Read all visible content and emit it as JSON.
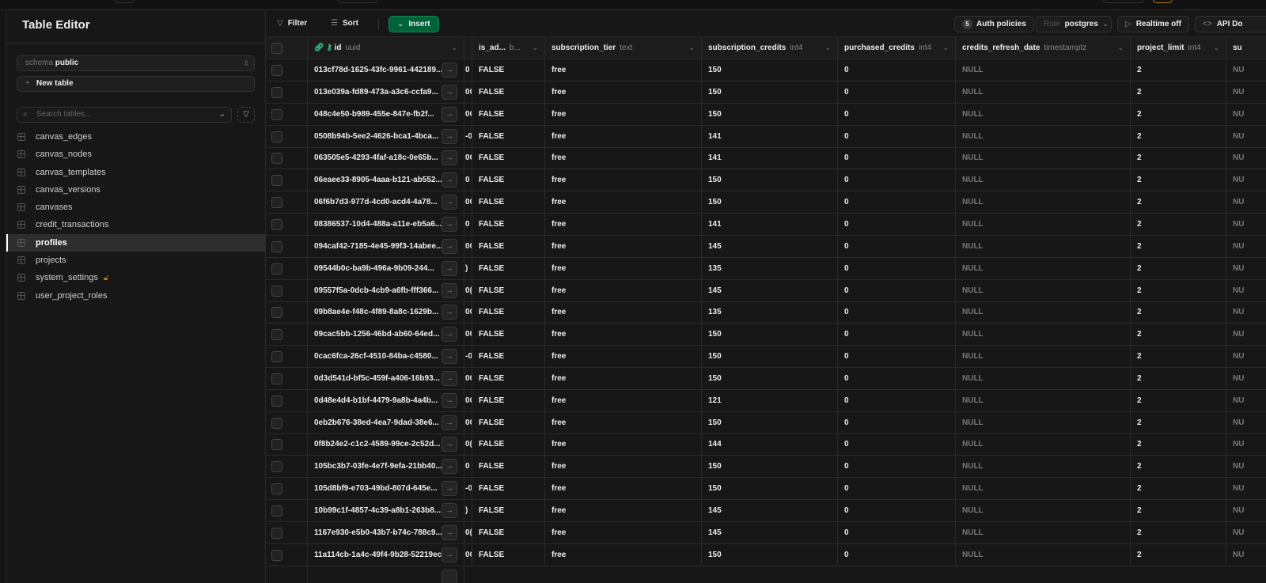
{
  "sidebar": {
    "title": "Table Editor",
    "schema_label": "schema",
    "schema_value": "public",
    "new_table": "New table",
    "search_placeholder": "Search tables...",
    "tables": [
      {
        "name": "canvas_edges"
      },
      {
        "name": "canvas_nodes"
      },
      {
        "name": "canvas_templates"
      },
      {
        "name": "canvas_versions"
      },
      {
        "name": "canvases"
      },
      {
        "name": "credit_transactions"
      },
      {
        "name": "profiles",
        "active": true
      },
      {
        "name": "projects"
      },
      {
        "name": "system_settings",
        "locked": true
      },
      {
        "name": "user_project_roles"
      }
    ]
  },
  "toolbar": {
    "filter": "Filter",
    "sort": "Sort",
    "insert": "Insert",
    "auth_count": "5",
    "auth_policies": "Auth policies",
    "role_label": "Role",
    "role_value": "postgres",
    "realtime": "Realtime off",
    "api_docs": "API Do"
  },
  "columns": [
    {
      "name": "id",
      "type": "uuid"
    },
    {
      "name": "",
      "type": ""
    },
    {
      "name": "is_ad...",
      "type": "b..."
    },
    {
      "name": "subscription_tier",
      "type": "text"
    },
    {
      "name": "subscription_credits",
      "type": "int4"
    },
    {
      "name": "purchased_credits",
      "type": "int4"
    },
    {
      "name": "credits_refresh_date",
      "type": "timestamptz"
    },
    {
      "name": "project_limit",
      "type": "int4"
    },
    {
      "name": "su",
      "type": ""
    }
  ],
  "rows": [
    [
      "013cf78d-1625-43fc-9961-442189...",
      "0",
      "FALSE",
      "free",
      "150",
      "0",
      "NULL",
      "2",
      "NU"
    ],
    [
      "013e039a-fd89-473a-a3c6-ccfa9...",
      "0C",
      "FALSE",
      "free",
      "150",
      "0",
      "NULL",
      "2",
      "NU"
    ],
    [
      "048c4e50-b989-455e-847e-fb2f...",
      "0C",
      "FALSE",
      "free",
      "150",
      "0",
      "NULL",
      "2",
      "NU"
    ],
    [
      "0508b94b-5ee2-4626-bca1-4bca...",
      "-0",
      "FALSE",
      "free",
      "141",
      "0",
      "NULL",
      "2",
      "NU"
    ],
    [
      "063505e5-4293-4faf-a18c-0e65b...",
      "0C",
      "FALSE",
      "free",
      "141",
      "0",
      "NULL",
      "2",
      "NU"
    ],
    [
      "06eaee33-8905-4aaa-b121-ab552...",
      "0",
      "FALSE",
      "free",
      "150",
      "0",
      "NULL",
      "2",
      "NU"
    ],
    [
      "06f6b7d3-977d-4cd0-acd4-4a78...",
      "0C",
      "FALSE",
      "free",
      "150",
      "0",
      "NULL",
      "2",
      "NU"
    ],
    [
      "08386537-10d4-488a-a11e-eb5a6...",
      "0",
      "FALSE",
      "free",
      "141",
      "0",
      "NULL",
      "2",
      "NU"
    ],
    [
      "094caf42-7185-4e45-99f3-14abee...",
      "0C",
      "FALSE",
      "free",
      "145",
      "0",
      "NULL",
      "2",
      "NU"
    ],
    [
      "09544b0c-ba9b-496a-9b09-244...",
      ")",
      "FALSE",
      "free",
      "135",
      "0",
      "NULL",
      "2",
      "NU"
    ],
    [
      "09557f5a-0dcb-4cb9-a6fb-fff366...",
      "0(",
      "FALSE",
      "free",
      "145",
      "0",
      "NULL",
      "2",
      "NU"
    ],
    [
      "09b8ae4e-f48c-4f89-8a8c-1629b...",
      "0C",
      "FALSE",
      "free",
      "135",
      "0",
      "NULL",
      "2",
      "NU"
    ],
    [
      "09cac5bb-1256-46bd-ab60-64ed...",
      "0C",
      "FALSE",
      "free",
      "150",
      "0",
      "NULL",
      "2",
      "NU"
    ],
    [
      "0cac6fca-26cf-4510-84ba-c4580...",
      "-0",
      "FALSE",
      "free",
      "150",
      "0",
      "NULL",
      "2",
      "NU"
    ],
    [
      "0d3d541d-bf5c-459f-a406-16b93...",
      "0C",
      "FALSE",
      "free",
      "150",
      "0",
      "NULL",
      "2",
      "NU"
    ],
    [
      "0d48e4d4-b1bf-4479-9a8b-4a4b...",
      "0C",
      "FALSE",
      "free",
      "121",
      "0",
      "NULL",
      "2",
      "NU"
    ],
    [
      "0eb2b676-38ed-4ea7-9dad-38e6...",
      "0C",
      "FALSE",
      "free",
      "150",
      "0",
      "NULL",
      "2",
      "NU"
    ],
    [
      "0f8b24e2-c1c2-4589-99ce-2c52d...",
      "0(",
      "FALSE",
      "free",
      "144",
      "0",
      "NULL",
      "2",
      "NU"
    ],
    [
      "105bc3b7-03fe-4e7f-9efa-21bb40...",
      "0",
      "FALSE",
      "free",
      "150",
      "0",
      "NULL",
      "2",
      "NU"
    ],
    [
      "105d8bf9-e703-49bd-807d-645e...",
      "-0",
      "FALSE",
      "free",
      "150",
      "0",
      "NULL",
      "2",
      "NU"
    ],
    [
      "10b99c1f-4857-4c39-a8b1-263b8...",
      ")",
      "FALSE",
      "free",
      "145",
      "0",
      "NULL",
      "2",
      "NU"
    ],
    [
      "1167e930-e5b0-43b7-b74c-788c9...",
      "0(",
      "FALSE",
      "free",
      "145",
      "0",
      "NULL",
      "2",
      "NU"
    ],
    [
      "11a114cb-1a4c-49f4-9b28-52219ec...",
      "0C",
      "FALSE",
      "free",
      "150",
      "0",
      "NULL",
      "2",
      "NU"
    ]
  ]
}
